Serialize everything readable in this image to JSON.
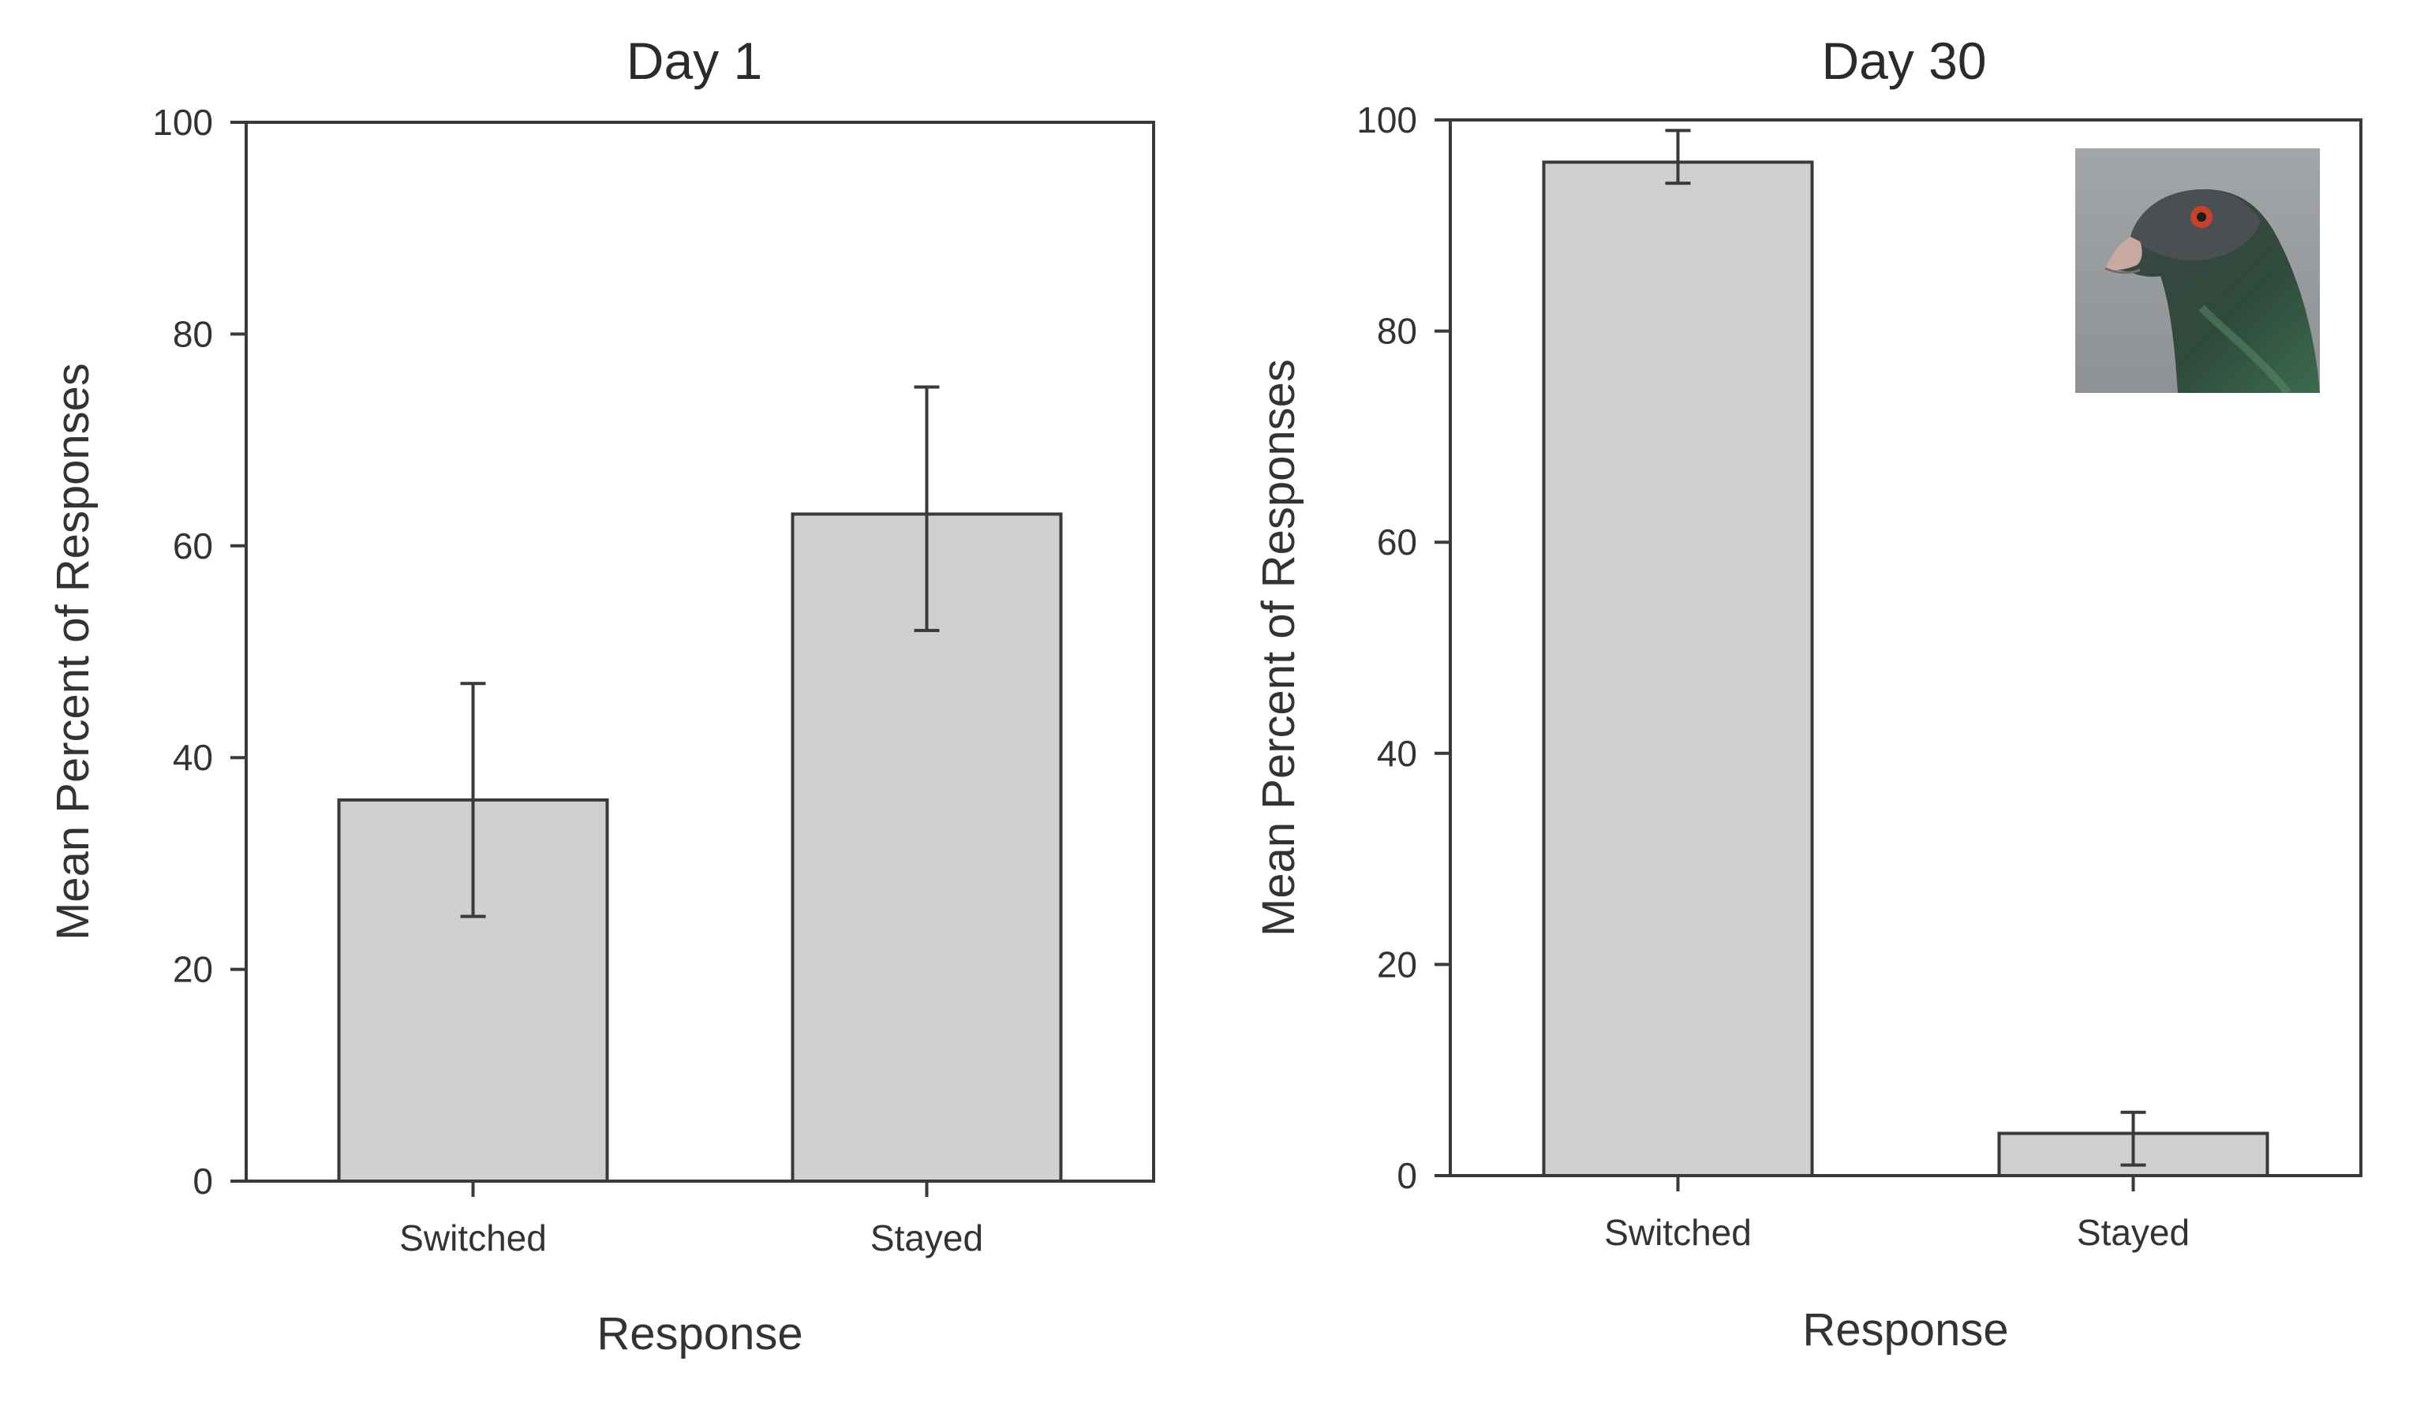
{
  "chart_data": [
    {
      "type": "bar",
      "title": "Day 1",
      "xlabel": "Response",
      "ylabel": "Mean Percent of Responses",
      "categories": [
        "Switched",
        "Stayed"
      ],
      "values": [
        36,
        63
      ],
      "error_low": [
        25,
        52
      ],
      "error_high": [
        47,
        75
      ],
      "ylim": [
        0,
        100
      ],
      "yticks": [
        "0",
        "20",
        "40",
        "60",
        "80",
        "100"
      ],
      "bar_color": "#d0d0d2"
    },
    {
      "type": "bar",
      "title": "Day 30",
      "xlabel": "Response",
      "ylabel": "Mean Percent of Responses",
      "categories": [
        "Switched",
        "Stayed"
      ],
      "values": [
        96,
        4
      ],
      "error_low": [
        94,
        1
      ],
      "error_high": [
        99,
        6
      ],
      "ylim": [
        0,
        100
      ],
      "yticks": [
        "0",
        "20",
        "40",
        "60",
        "80",
        "100"
      ],
      "bar_color": "#d0d0d2",
      "inset_image": "pigeon-head-photo"
    }
  ]
}
